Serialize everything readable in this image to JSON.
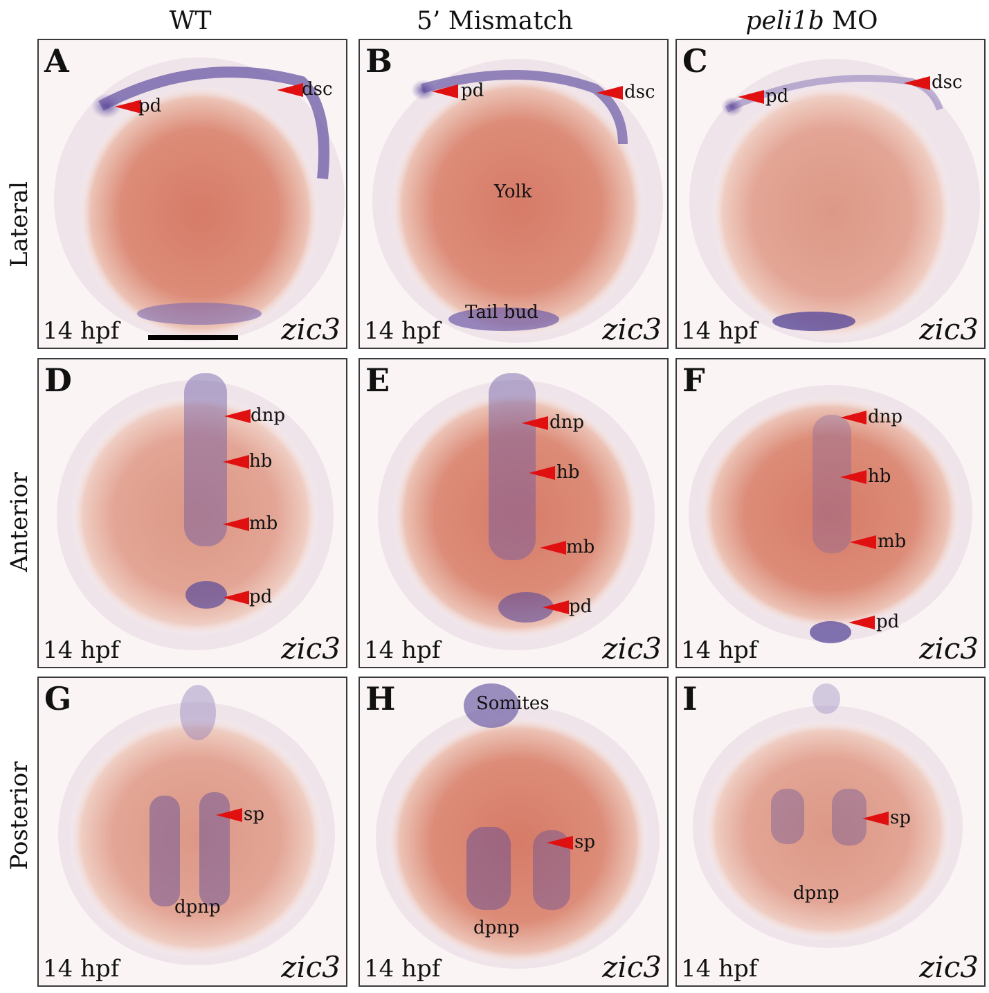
{
  "columns": [
    {
      "label": "WT",
      "italic": false
    },
    {
      "prefix": "",
      "italic_part": "",
      "label": "5’ Mismatch"
    },
    {
      "italic_part": "peli1b",
      "rest": " MO"
    }
  ],
  "rows": [
    "Lateral",
    "Anterior",
    "Posterior"
  ],
  "panels": [
    {
      "letter": "A",
      "stage": "14 hpf",
      "gene": "zic3",
      "labels": [
        "pd",
        "dsc"
      ],
      "annotations": []
    },
    {
      "letter": "B",
      "stage": "14 hpf",
      "gene": "zic3",
      "labels": [
        "pd",
        "dsc"
      ],
      "annotations": [
        "Yolk",
        "Tail bud"
      ]
    },
    {
      "letter": "C",
      "stage": "14 hpf",
      "gene": "zic3",
      "labels": [
        "pd",
        "dsc"
      ],
      "annotations": []
    },
    {
      "letter": "D",
      "stage": "14 hpf",
      "gene": "zic3",
      "labels": [
        "dnp",
        "hb",
        "mb",
        "pd"
      ],
      "annotations": []
    },
    {
      "letter": "E",
      "stage": "14 hpf",
      "gene": "zic3",
      "labels": [
        "dnp",
        "hb",
        "mb",
        "pd"
      ],
      "annotations": []
    },
    {
      "letter": "F",
      "stage": "14 hpf",
      "gene": "zic3",
      "labels": [
        "dnp",
        "hb",
        "mb",
        "pd"
      ],
      "annotations": []
    },
    {
      "letter": "G",
      "stage": "14 hpf",
      "gene": "zic3",
      "labels": [
        "sp"
      ],
      "annotations": [
        "dpnp"
      ]
    },
    {
      "letter": "H",
      "stage": "14 hpf",
      "gene": "zic3",
      "labels": [
        "sp"
      ],
      "annotations": [
        "Somites",
        "dpnp"
      ]
    },
    {
      "letter": "I",
      "stage": "14 hpf",
      "gene": "zic3",
      "labels": [
        "sp"
      ],
      "annotations": [
        "dpnp"
      ]
    }
  ],
  "colors": {
    "arrow": "#e01010",
    "embryo": "#d98a78",
    "stain": "#5a4a9a"
  }
}
